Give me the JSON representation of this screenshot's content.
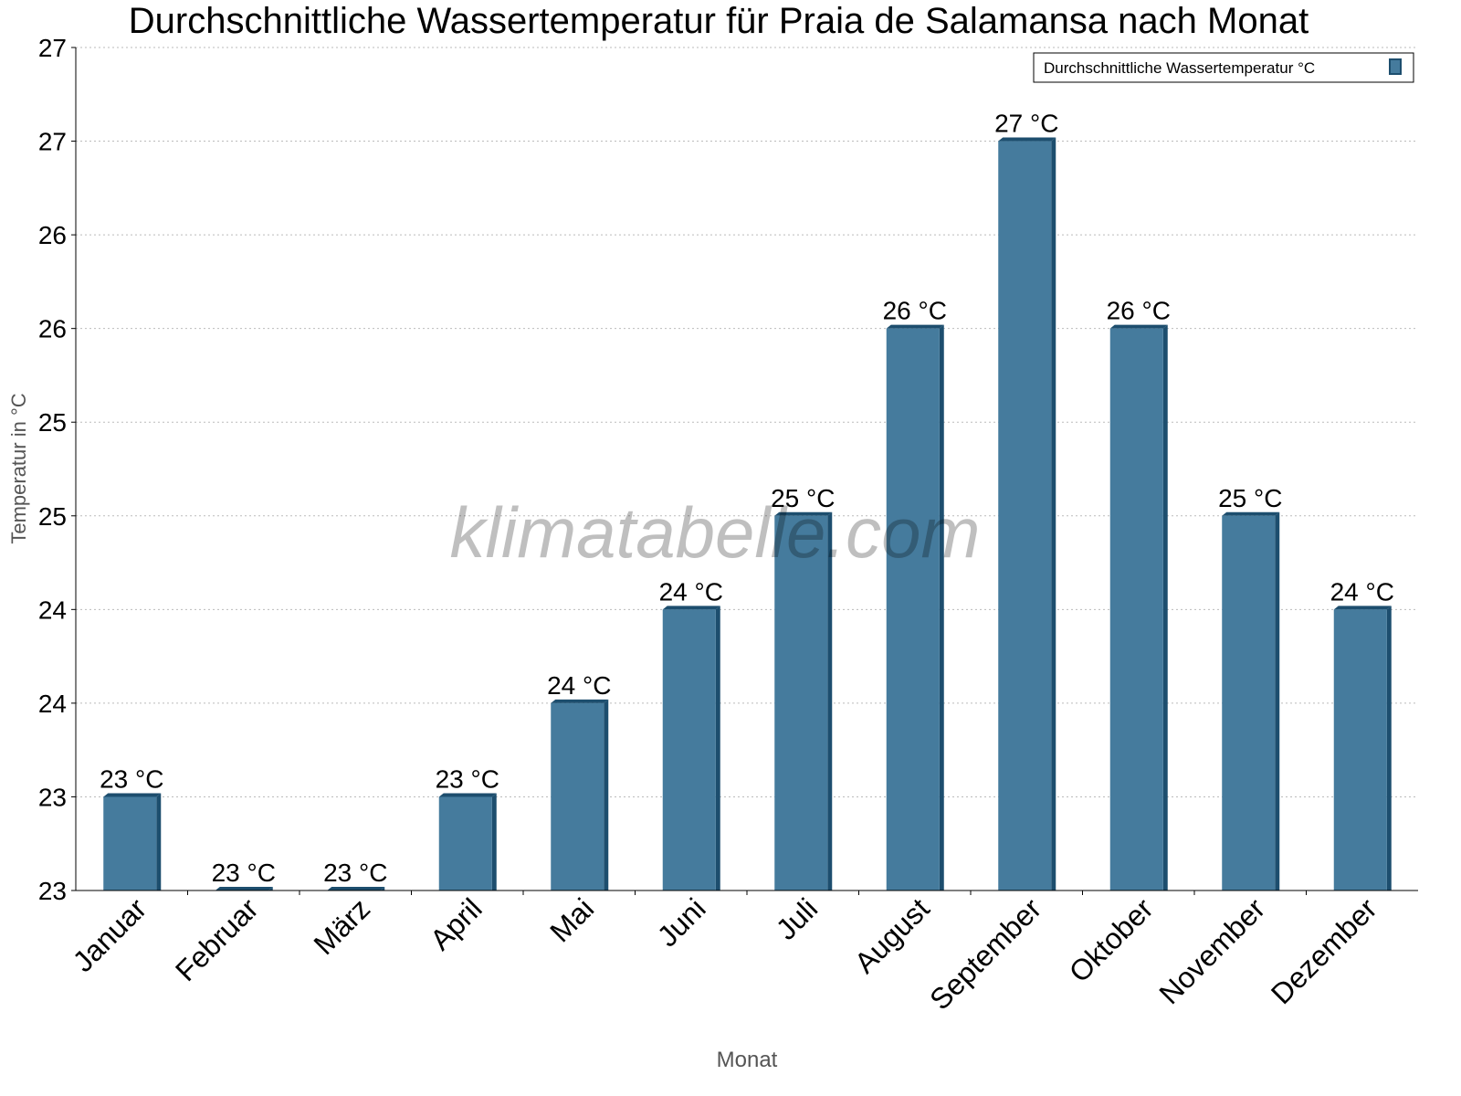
{
  "chart_data": {
    "type": "bar",
    "title": "Durchschnittliche Wassertemperatur für Praia de Salamansa nach Monat",
    "xlabel": "Monat",
    "ylabel": "Temperatur in °C",
    "categories": [
      "Januar",
      "Februar",
      "März",
      "April",
      "Mai",
      "Juni",
      "Juli",
      "August",
      "September",
      "Oktober",
      "November",
      "Dezember"
    ],
    "series": [
      {
        "name": "Durchschnittliche Wassertemperatur °C",
        "values": [
          23.3,
          22.8,
          22.8,
          23.3,
          23.8,
          24.3,
          24.8,
          25.8,
          26.8,
          25.8,
          24.8,
          24.3
        ],
        "labels": [
          "23 °C",
          "23 °C",
          "23 °C",
          "23 °C",
          "24 °C",
          "24 °C",
          "25 °C",
          "26 °C",
          "27 °C",
          "26 °C",
          "25 °C",
          "24 °C"
        ]
      }
    ],
    "yticks": [
      22.8,
      23.3,
      23.8,
      24.3,
      24.8,
      25.3,
      25.8,
      26.3,
      26.8,
      27.3
    ],
    "ytick_labels": [
      "23",
      "23",
      "24",
      "24",
      "25",
      "25",
      "26",
      "26",
      "27",
      "27"
    ],
    "ylim": [
      22.8,
      27.3
    ],
    "grid": true,
    "legend": "top-right",
    "colors": {
      "bar": "#457b9d",
      "bar_side": "#1d4e6e"
    },
    "watermark": "klimatabelle.com"
  }
}
